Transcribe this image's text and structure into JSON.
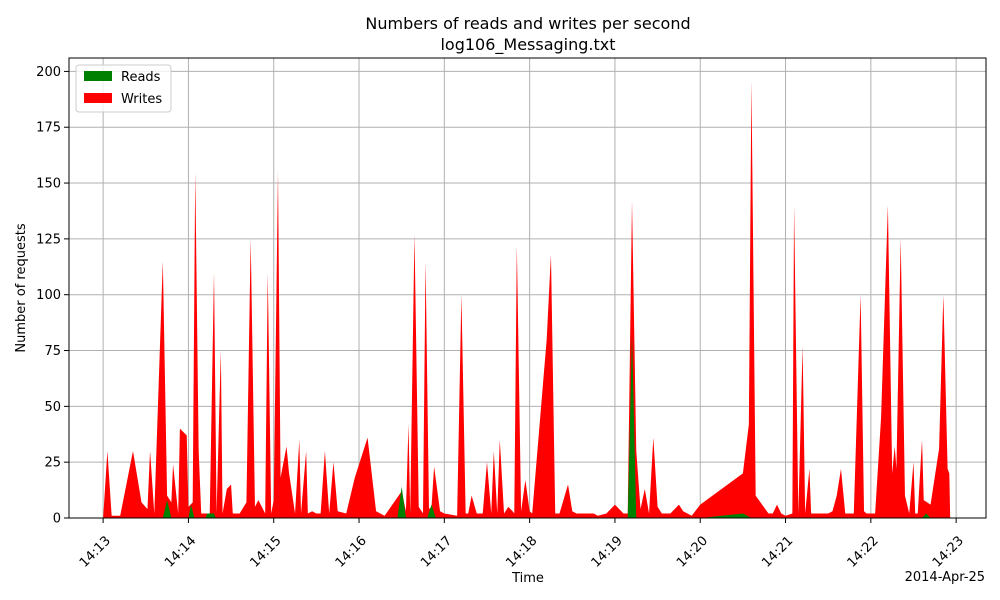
{
  "chart_data": {
    "type": "area",
    "title": "Numbers of reads and writes per second",
    "subtitle": "log106_Messaging.txt",
    "xlabel": "Time",
    "ylabel": "Number of requests",
    "date_label": "2014-Apr-25",
    "xlim": [
      12.6,
      23.35
    ],
    "ylim": [
      0,
      206
    ],
    "x_ticks": [
      13,
      14,
      15,
      16,
      17,
      18,
      19,
      20,
      21,
      22,
      23
    ],
    "x_tick_labels": [
      "14:13",
      "14:14",
      "14:15",
      "14:16",
      "14:17",
      "14:18",
      "14:19",
      "14:20",
      "14:21",
      "14:22",
      "14:23"
    ],
    "y_ticks": [
      0,
      25,
      50,
      75,
      100,
      125,
      150,
      175,
      200
    ],
    "y_tick_labels": [
      "0",
      "25",
      "50",
      "75",
      "100",
      "125",
      "150",
      "175",
      "200"
    ],
    "grid": true,
    "legend_position": "upper-left",
    "colors": {
      "reads": "#008000",
      "writes": "#ff0000",
      "grid": "#b0b0b0"
    },
    "x_unit": "minutes past 14:00",
    "series": [
      {
        "name": "Reads",
        "points": [
          [
            13.0,
            0
          ],
          [
            13.7,
            0
          ],
          [
            13.75,
            8
          ],
          [
            13.8,
            0
          ],
          [
            14.0,
            0
          ],
          [
            14.03,
            6
          ],
          [
            14.07,
            0
          ],
          [
            14.2,
            0
          ],
          [
            14.22,
            2
          ],
          [
            14.3,
            2
          ],
          [
            14.32,
            0
          ],
          [
            16.45,
            0
          ],
          [
            16.5,
            14
          ],
          [
            16.55,
            0
          ],
          [
            16.8,
            0
          ],
          [
            16.85,
            6
          ],
          [
            16.9,
            0
          ],
          [
            19.15,
            0
          ],
          [
            19.2,
            82
          ],
          [
            19.25,
            0
          ],
          [
            20.0,
            0
          ],
          [
            20.5,
            2
          ],
          [
            20.6,
            0
          ],
          [
            22.6,
            0
          ],
          [
            22.65,
            2
          ],
          [
            22.7,
            0
          ],
          [
            22.9,
            0
          ]
        ]
      },
      {
        "name": "Writes",
        "points": [
          [
            13.0,
            0
          ],
          [
            13.05,
            30
          ],
          [
            13.1,
            1
          ],
          [
            13.2,
            1
          ],
          [
            13.35,
            30
          ],
          [
            13.45,
            7
          ],
          [
            13.52,
            4
          ],
          [
            13.55,
            30
          ],
          [
            13.6,
            2
          ],
          [
            13.7,
            115
          ],
          [
            13.75,
            10
          ],
          [
            13.8,
            7
          ],
          [
            13.82,
            24
          ],
          [
            13.88,
            2
          ],
          [
            13.9,
            40
          ],
          [
            13.98,
            37
          ],
          [
            14.0,
            5
          ],
          [
            14.05,
            7
          ],
          [
            14.08,
            155
          ],
          [
            14.12,
            30
          ],
          [
            14.15,
            2
          ],
          [
            14.25,
            2
          ],
          [
            14.3,
            110
          ],
          [
            14.33,
            2
          ],
          [
            14.38,
            75
          ],
          [
            14.4,
            2
          ],
          [
            14.45,
            13
          ],
          [
            14.5,
            15
          ],
          [
            14.52,
            2
          ],
          [
            14.6,
            2
          ],
          [
            14.68,
            7
          ],
          [
            14.73,
            125
          ],
          [
            14.78,
            5
          ],
          [
            14.82,
            8
          ],
          [
            14.9,
            2
          ],
          [
            14.93,
            110
          ],
          [
            14.97,
            2
          ],
          [
            15.0,
            8
          ],
          [
            15.05,
            155
          ],
          [
            15.08,
            18
          ],
          [
            15.15,
            32
          ],
          [
            15.18,
            20
          ],
          [
            15.25,
            2
          ],
          [
            15.3,
            35
          ],
          [
            15.32,
            2
          ],
          [
            15.38,
            30
          ],
          [
            15.4,
            2
          ],
          [
            15.45,
            3
          ],
          [
            15.5,
            2
          ],
          [
            15.55,
            2
          ],
          [
            15.6,
            30
          ],
          [
            15.65,
            2
          ],
          [
            15.7,
            25
          ],
          [
            15.75,
            3
          ],
          [
            15.85,
            2
          ],
          [
            15.95,
            18
          ],
          [
            16.1,
            36
          ],
          [
            16.2,
            3
          ],
          [
            16.3,
            1
          ],
          [
            16.5,
            12
          ],
          [
            16.55,
            3
          ],
          [
            16.58,
            42
          ],
          [
            16.6,
            2
          ],
          [
            16.65,
            127
          ],
          [
            16.7,
            5
          ],
          [
            16.75,
            2
          ],
          [
            16.78,
            115
          ],
          [
            16.82,
            4
          ],
          [
            16.85,
            5
          ],
          [
            16.88,
            23
          ],
          [
            16.95,
            3
          ],
          [
            17.0,
            2
          ],
          [
            17.15,
            1
          ],
          [
            17.2,
            100
          ],
          [
            17.25,
            2
          ],
          [
            17.28,
            2
          ],
          [
            17.32,
            10
          ],
          [
            17.38,
            2
          ],
          [
            17.45,
            2
          ],
          [
            17.5,
            25
          ],
          [
            17.55,
            2
          ],
          [
            17.58,
            30
          ],
          [
            17.62,
            2
          ],
          [
            17.65,
            35
          ],
          [
            17.7,
            2
          ],
          [
            17.75,
            5
          ],
          [
            17.8,
            3
          ],
          [
            17.82,
            2
          ],
          [
            17.85,
            122
          ],
          [
            17.9,
            3
          ],
          [
            17.95,
            17
          ],
          [
            18.0,
            3
          ],
          [
            18.03,
            2
          ],
          [
            18.2,
            80
          ],
          [
            18.25,
            118
          ],
          [
            18.3,
            2
          ],
          [
            18.35,
            2
          ],
          [
            18.45,
            15
          ],
          [
            18.5,
            3
          ],
          [
            18.55,
            2
          ],
          [
            18.6,
            2
          ],
          [
            18.65,
            2
          ],
          [
            18.75,
            2
          ],
          [
            18.8,
            1
          ],
          [
            18.9,
            2
          ],
          [
            19.0,
            6
          ],
          [
            19.1,
            2
          ],
          [
            19.15,
            2
          ],
          [
            19.2,
            142
          ],
          [
            19.25,
            30
          ],
          [
            19.3,
            4
          ],
          [
            19.35,
            13
          ],
          [
            19.4,
            2
          ],
          [
            19.45,
            36
          ],
          [
            19.5,
            5
          ],
          [
            19.55,
            2
          ],
          [
            19.65,
            2
          ],
          [
            19.75,
            6
          ],
          [
            19.8,
            3
          ],
          [
            19.85,
            2
          ],
          [
            19.9,
            1
          ],
          [
            20.0,
            6
          ],
          [
            20.5,
            20
          ],
          [
            20.57,
            42
          ],
          [
            20.6,
            196
          ],
          [
            20.65,
            10
          ],
          [
            20.8,
            2
          ],
          [
            20.85,
            2
          ],
          [
            20.9,
            6
          ],
          [
            20.95,
            2
          ],
          [
            21.0,
            1
          ],
          [
            21.08,
            2
          ],
          [
            21.1,
            140
          ],
          [
            21.15,
            2
          ],
          [
            21.2,
            77
          ],
          [
            21.23,
            2
          ],
          [
            21.28,
            22
          ],
          [
            21.3,
            2
          ],
          [
            21.4,
            2
          ],
          [
            21.5,
            2
          ],
          [
            21.55,
            3
          ],
          [
            21.6,
            10
          ],
          [
            21.65,
            22
          ],
          [
            21.7,
            2
          ],
          [
            21.8,
            2
          ],
          [
            21.88,
            100
          ],
          [
            21.92,
            3
          ],
          [
            21.95,
            2
          ],
          [
            22.0,
            2
          ],
          [
            22.05,
            2
          ],
          [
            22.12,
            45
          ],
          [
            22.2,
            140
          ],
          [
            22.25,
            20
          ],
          [
            22.28,
            32
          ],
          [
            22.3,
            22
          ],
          [
            22.35,
            125
          ],
          [
            22.4,
            10
          ],
          [
            22.45,
            2
          ],
          [
            22.5,
            25
          ],
          [
            22.52,
            2
          ],
          [
            22.55,
            2
          ],
          [
            22.6,
            35
          ],
          [
            22.62,
            8
          ],
          [
            22.7,
            6
          ],
          [
            22.8,
            31
          ],
          [
            22.85,
            100
          ],
          [
            22.9,
            22
          ],
          [
            22.92,
            20
          ],
          [
            22.93,
            0
          ]
        ]
      }
    ]
  }
}
